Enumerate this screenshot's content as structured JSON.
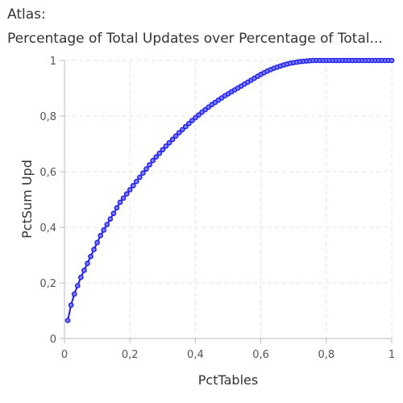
{
  "title_line1": "Atlas:",
  "title_line2": "Percentage of Total Updates over Percentage of Total...",
  "chart_data": {
    "type": "line",
    "title": "Atlas: Percentage of Total Updates over Percentage of Total...",
    "xlabel": "PctTables",
    "ylabel": "PctSum Upd",
    "xlim": [
      0,
      1
    ],
    "ylim": [
      0,
      1
    ],
    "x_ticks": [
      "0",
      "0,2",
      "0,4",
      "0,6",
      "0,8",
      "1"
    ],
    "y_ticks": [
      "0",
      "0,2",
      "0,4",
      "0,6",
      "0,8",
      "1"
    ],
    "grid": true,
    "series_color": "#1a1aff",
    "series": [
      {
        "x": [
          0.01,
          0.02,
          0.03,
          0.04,
          0.05,
          0.06,
          0.07,
          0.08,
          0.09,
          0.1,
          0.11,
          0.12,
          0.13,
          0.14,
          0.15,
          0.16,
          0.17,
          0.18,
          0.19,
          0.2,
          0.21,
          0.22,
          0.23,
          0.24,
          0.25,
          0.26,
          0.27,
          0.28,
          0.29,
          0.3,
          0.31,
          0.32,
          0.33,
          0.34,
          0.35,
          0.36,
          0.37,
          0.38,
          0.39,
          0.4,
          0.41,
          0.42,
          0.43,
          0.44,
          0.45,
          0.46,
          0.47,
          0.48,
          0.49,
          0.5,
          0.51,
          0.52,
          0.53,
          0.54,
          0.55,
          0.56,
          0.57,
          0.58,
          0.59,
          0.6,
          0.61,
          0.62,
          0.63,
          0.64,
          0.65,
          0.66,
          0.67,
          0.68,
          0.69,
          0.7,
          0.71,
          0.72,
          0.73,
          0.74,
          0.75,
          0.76,
          0.77,
          0.78,
          0.79,
          0.8,
          0.81,
          0.82,
          0.83,
          0.84,
          0.85,
          0.86,
          0.87,
          0.88,
          0.89,
          0.9,
          0.91,
          0.92,
          0.93,
          0.94,
          0.95,
          0.96,
          0.97,
          0.98,
          0.99,
          1.0
        ],
        "values": [
          0.065,
          0.12,
          0.16,
          0.19,
          0.22,
          0.245,
          0.27,
          0.295,
          0.32,
          0.345,
          0.37,
          0.39,
          0.41,
          0.43,
          0.45,
          0.47,
          0.49,
          0.505,
          0.52,
          0.535,
          0.55,
          0.565,
          0.58,
          0.595,
          0.61,
          0.625,
          0.64,
          0.653,
          0.666,
          0.679,
          0.692,
          0.704,
          0.716,
          0.728,
          0.74,
          0.751,
          0.762,
          0.773,
          0.784,
          0.794,
          0.804,
          0.814,
          0.823,
          0.832,
          0.841,
          0.849,
          0.857,
          0.865,
          0.873,
          0.88,
          0.887,
          0.894,
          0.901,
          0.908,
          0.915,
          0.922,
          0.929,
          0.936,
          0.943,
          0.95,
          0.956,
          0.962,
          0.967,
          0.972,
          0.976,
          0.98,
          0.984,
          0.987,
          0.99,
          0.992,
          0.994,
          0.996,
          0.997,
          0.998,
          0.999,
          1.0,
          1.0,
          1.0,
          1.0,
          1.0,
          1.0,
          1.0,
          1.0,
          1.0,
          1.0,
          1.0,
          1.0,
          1.0,
          1.0,
          1.0,
          1.0,
          1.0,
          1.0,
          1.0,
          1.0,
          1.0,
          1.0,
          1.0,
          1.0,
          1.0
        ]
      }
    ]
  }
}
